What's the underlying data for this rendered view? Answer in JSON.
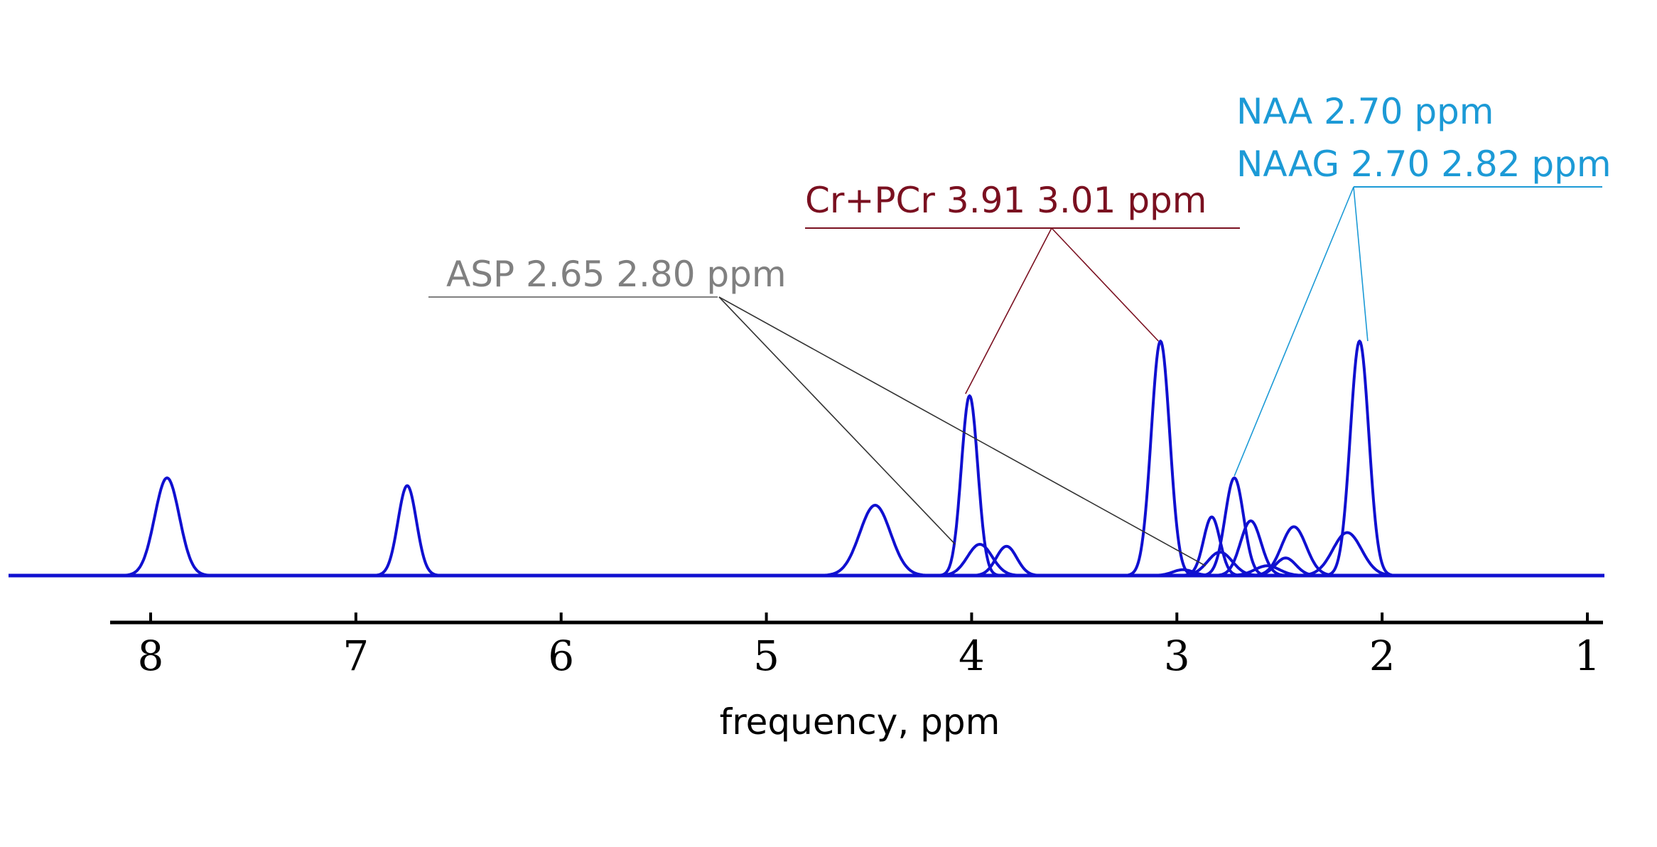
{
  "chart_data": {
    "type": "line",
    "xlabel": "frequency, ppm",
    "ylabel": "",
    "title": "",
    "x_axis": {
      "reversed": true,
      "xlim": [
        8.2,
        0.95
      ],
      "ticks": [
        8,
        7,
        6,
        5,
        4,
        3,
        2,
        1
      ]
    },
    "ylim": [
      0,
      1.25
    ],
    "grid": false,
    "series_color": "#1010d0",
    "series": [
      {
        "peaks": [
          {
            "center": 7.92,
            "height": 0.5,
            "width": 0.06
          },
          {
            "center": 6.75,
            "height": 0.46,
            "width": 0.045
          },
          {
            "center": 4.47,
            "height": 0.36,
            "width": 0.075
          },
          {
            "center": 4.01,
            "height": 0.92,
            "width": 0.04
          },
          {
            "center": 3.96,
            "height": 0.16,
            "width": 0.06
          },
          {
            "center": 3.83,
            "height": 0.15,
            "width": 0.05
          },
          {
            "center": 3.08,
            "height": 1.2,
            "width": 0.045
          },
          {
            "center": 2.97,
            "height": 0.03,
            "width": 0.05
          },
          {
            "center": 2.83,
            "height": 0.3,
            "width": 0.04
          },
          {
            "center": 2.79,
            "height": 0.12,
            "width": 0.06
          },
          {
            "center": 2.72,
            "height": 0.5,
            "width": 0.045
          },
          {
            "center": 2.64,
            "height": 0.28,
            "width": 0.05
          },
          {
            "center": 2.56,
            "height": 0.05,
            "width": 0.06
          },
          {
            "center": 2.47,
            "height": 0.09,
            "width": 0.05
          },
          {
            "center": 2.43,
            "height": 0.25,
            "width": 0.06
          },
          {
            "center": 2.17,
            "height": 0.22,
            "width": 0.07
          },
          {
            "center": 2.11,
            "height": 1.2,
            "width": 0.045
          }
        ]
      }
    ],
    "annotations": [
      {
        "text": "ASP 2.65 2.80 ppm",
        "color": "#808080",
        "targets": [
          {
            "x": 4.08,
            "y": 0.16
          },
          {
            "x": 2.86,
            "y": 0.05
          }
        ]
      },
      {
        "text": "Cr+PCr 3.91 3.01 ppm",
        "color": "#7a1020",
        "targets": [
          {
            "x": 4.03,
            "y": 0.93
          },
          {
            "x": 3.09,
            "y": 1.2
          }
        ]
      },
      {
        "text": [
          "NAA 2.70 ppm",
          "NAAG 2.70 2.82 ppm"
        ],
        "color": "#1c9ad6",
        "targets": [
          {
            "x": 2.72,
            "y": 0.51
          },
          {
            "x": 2.07,
            "y": 1.2
          }
        ]
      }
    ]
  }
}
